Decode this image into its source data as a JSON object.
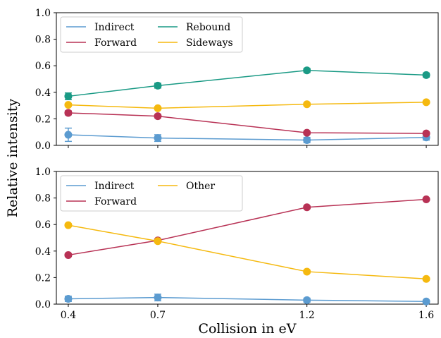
{
  "chart_data": [
    {
      "type": "line",
      "x": [
        0.4,
        0.7,
        1.2,
        1.6
      ],
      "xlim": [
        0.36,
        1.64
      ],
      "ylim": [
        0,
        1.0
      ],
      "yticks": [
        "0.0",
        "0.2",
        "0.4",
        "0.6",
        "0.8",
        "1.0"
      ],
      "ylabel": "Relative intensity",
      "legend_placement": "top-left",
      "legend_columns": 2,
      "grid": false,
      "series": [
        {
          "name": "Indirect",
          "color": "#5b9bd0",
          "values": [
            0.08,
            0.055,
            0.04,
            0.06
          ],
          "errors": [
            0.05,
            0.025,
            0.02,
            0.02
          ]
        },
        {
          "name": "Forward",
          "color": "#b83255",
          "values": [
            0.245,
            0.22,
            0.095,
            0.09
          ],
          "errors": [
            0.015,
            0.012,
            0.01,
            0.01
          ]
        },
        {
          "name": "Rebound",
          "color": "#1a9a85",
          "values": [
            0.37,
            0.45,
            0.565,
            0.53
          ],
          "errors": [
            0.025,
            0.018,
            0.015,
            0.015
          ]
        },
        {
          "name": "Sideways",
          "color": "#f5b90f",
          "values": [
            0.305,
            0.28,
            0.31,
            0.325
          ],
          "errors": [
            0.01,
            0.01,
            0.01,
            0.01
          ]
        }
      ]
    },
    {
      "type": "line",
      "x": [
        0.4,
        0.7,
        1.2,
        1.6
      ],
      "xlim": [
        0.36,
        1.64
      ],
      "ylim": [
        0,
        1.0
      ],
      "yticks": [
        "0.0",
        "0.2",
        "0.4",
        "0.6",
        "0.8",
        "1.0"
      ],
      "xticks": [
        "0.4",
        "0.7",
        "1.2",
        "1.6"
      ],
      "xlabel": "Collision in eV",
      "legend_placement": "top-left",
      "legend_columns": 2,
      "grid": false,
      "series": [
        {
          "name": "Indirect",
          "color": "#5b9bd0",
          "values": [
            0.04,
            0.05,
            0.03,
            0.02
          ],
          "errors": [
            0.02,
            0.025,
            0.015,
            0.01
          ]
        },
        {
          "name": "Forward",
          "color": "#b83255",
          "values": [
            0.37,
            0.48,
            0.73,
            0.79
          ],
          "errors": [
            0.01,
            0.01,
            0.01,
            0.01
          ]
        },
        {
          "name": "Other",
          "color": "#f5b90f",
          "values": [
            0.595,
            0.475,
            0.245,
            0.19
          ],
          "errors": [
            0.01,
            0.01,
            0.01,
            0.01
          ]
        }
      ]
    }
  ]
}
